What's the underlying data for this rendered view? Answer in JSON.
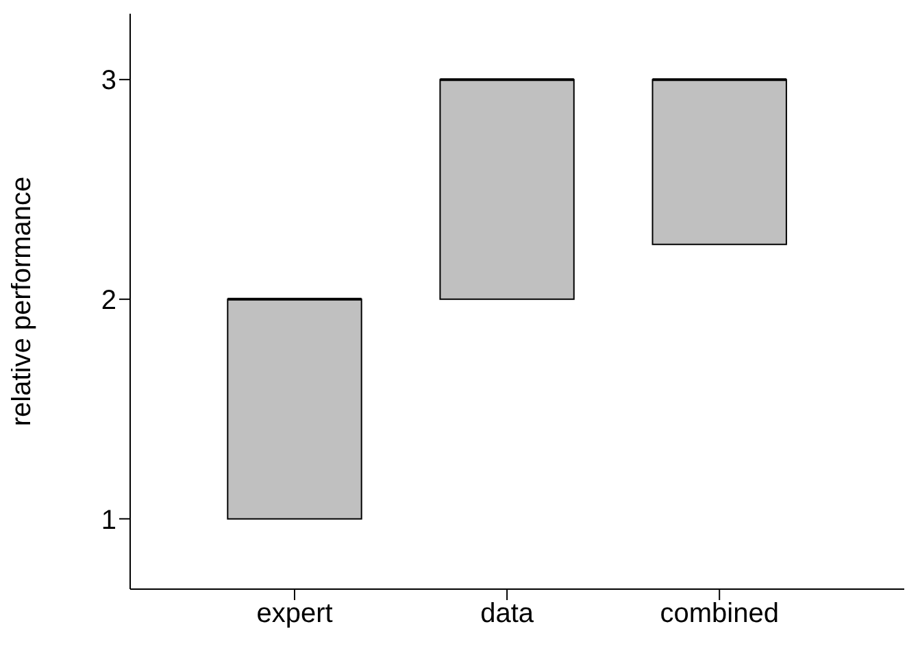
{
  "chart_data": {
    "type": "box",
    "ylabel": "relative performance",
    "categories": [
      "expert",
      "data",
      "combined"
    ],
    "color": "#c0c0c0",
    "boxes": [
      {
        "low": 1,
        "q1": 1,
        "median": 2,
        "q3": 2,
        "high": 2
      },
      {
        "low": 2,
        "q1": 2,
        "median": 3,
        "q3": 3,
        "high": 3
      },
      {
        "low": 2.25,
        "q1": 2.25,
        "median": 3,
        "q3": 3,
        "high": 3
      }
    ],
    "ylim": [
      0.68,
      3.3
    ],
    "yticks": [
      1,
      2,
      3
    ]
  }
}
